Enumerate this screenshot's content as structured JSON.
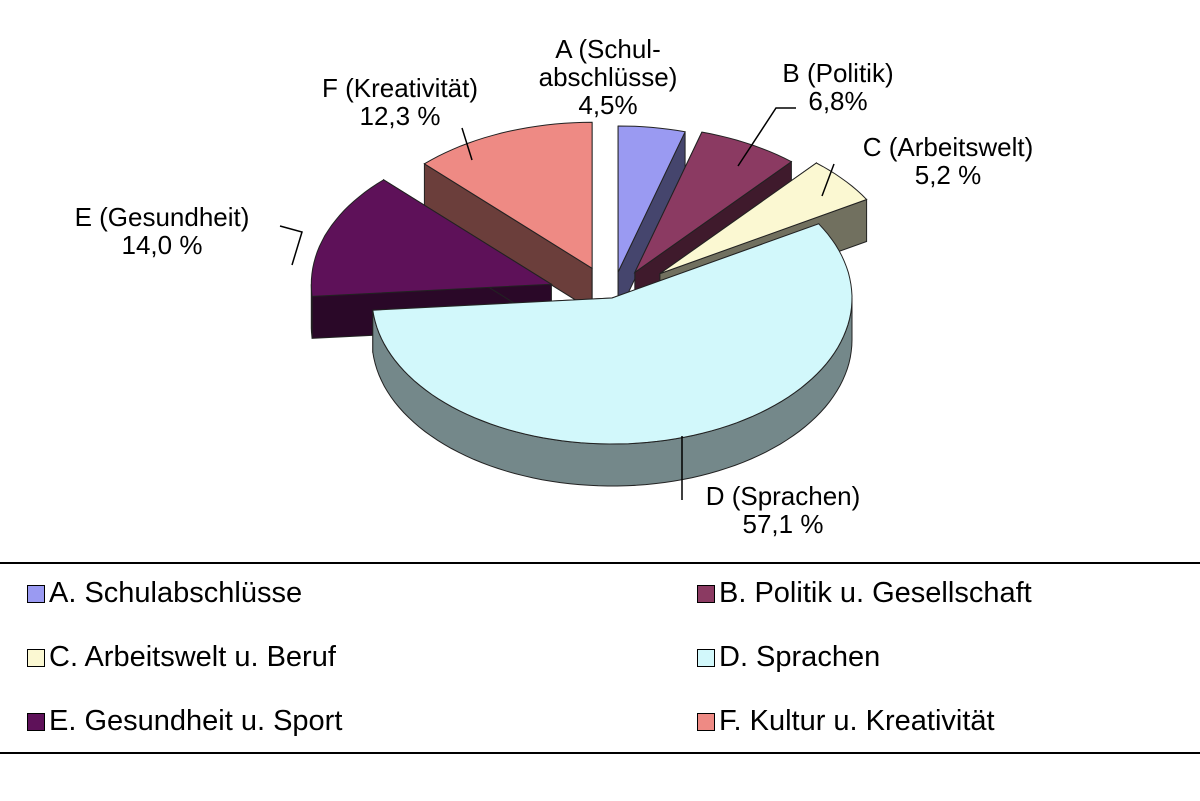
{
  "chart_data": {
    "type": "pie",
    "style": "3d-exploded",
    "slices": [
      {
        "key": "A",
        "label": "A (Schul-abschlüsse)",
        "label_lines": [
          "A (Schul-",
          "abschlüsse)"
        ],
        "value_label": "4,5%",
        "value": 4.5,
        "color": "#9a9af2",
        "legend": "A. Schulabschlüsse"
      },
      {
        "key": "B",
        "label": "B (Politik)",
        "label_lines": [
          "B (Politik)"
        ],
        "value_label": "6,8%",
        "value": 6.8,
        "color": "#8b3a62",
        "legend": "B. Politik u. Gesellschaft"
      },
      {
        "key": "C",
        "label": "C (Arbeitswelt)",
        "label_lines": [
          "C (Arbeitswelt)"
        ],
        "value_label": "5,2 %",
        "value": 5.2,
        "color": "#fbf8d2",
        "legend": "C. Arbeitswelt u. Beruf"
      },
      {
        "key": "D",
        "label": "D (Sprachen)",
        "label_lines": [
          "D (Sprachen)"
        ],
        "value_label": "57,1 %",
        "value": 57.1,
        "color": "#d2f8fb",
        "legend": "D. Sprachen"
      },
      {
        "key": "E",
        "label": "E (Gesundheit)",
        "label_lines": [
          "E (Gesundheit)"
        ],
        "value_label": "14,0 %",
        "value": 14.0,
        "color": "#5e1159",
        "legend": "E. Gesundheit u. Sport"
      },
      {
        "key": "F",
        "label": "F (Kreativität)",
        "label_lines": [
          "F (Kreativität)"
        ],
        "value_label": "12,3 %",
        "value": 12.3,
        "color": "#ee8a84",
        "legend": "F. Kultur u. Kreativität"
      }
    ],
    "legend_placement": "bottom"
  }
}
